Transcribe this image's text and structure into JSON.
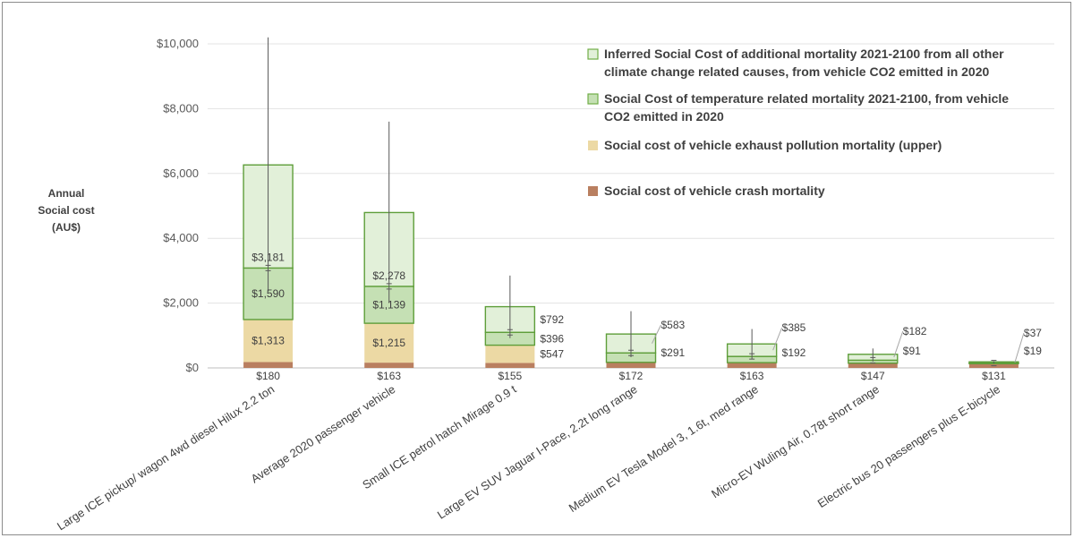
{
  "chart_data": {
    "type": "bar",
    "stacked": true,
    "ylabel_lines": [
      "Annual",
      "Social cost",
      "(AU$)"
    ],
    "ylim": [
      0,
      10000
    ],
    "yticks": [
      "$0",
      "$2,000",
      "$4,000",
      "$6,000",
      "$8,000",
      "$10,000"
    ],
    "ytick_values": [
      0,
      2000,
      4000,
      6000,
      8000,
      10000
    ],
    "categories": [
      "Large ICE pickup/ wagon 4wd diesel Hilux 2.2 ton",
      "Average 2020 passenger vehicle",
      "Small ICE petrol hatch Mirage 0.9 t",
      "Large EV  SUV  Jaguar I-Pace, 2.2t long range",
      "Medium EV Tesla Model 3, 1.6t, med range",
      "Micro-EV Wuling Air,  0.78t short range",
      "Electric bus 20 passengers plus E-bicycle"
    ],
    "series": [
      {
        "name": "Social cost of vehicle crash mortality",
        "color": "#b97f60",
        "values": [
          180,
          163,
          155,
          172,
          163,
          147,
          131
        ],
        "labels": [
          "$180",
          "$163",
          "$155",
          "$172",
          "$163",
          "$147",
          "$131"
        ]
      },
      {
        "name": "Social cost of vehicle exhaust pollution mortality (upper)",
        "color": "#ecd9a4",
        "values": [
          1313,
          1215,
          547,
          0,
          0,
          0,
          0
        ],
        "labels": [
          "$1,313",
          "$1,215",
          "$547",
          "",
          "",
          "",
          ""
        ]
      },
      {
        "name": "Social Cost of temperature related mortality 2021-2100, from vehicle CO2 emitted in 2020",
        "color": "#c5e0b4",
        "values": [
          1590,
          1139,
          396,
          291,
          192,
          91,
          19
        ],
        "labels": [
          "$1,590",
          "$1,139",
          "$396",
          "$291",
          "$192",
          "$91",
          "$19"
        ]
      },
      {
        "name": "Inferred Social Cost of additional mortality 2021-2100 from all other climate change related causes, from vehicle CO2 emitted in 2020",
        "color": "#e2f0d9",
        "values": [
          3181,
          2278,
          792,
          583,
          385,
          182,
          37
        ],
        "labels": [
          "$3,181",
          "$2,278",
          "$792",
          "$583",
          "$385",
          "$182",
          "$37"
        ]
      }
    ],
    "error_bar_tops": [
      10200,
      7600,
      2850,
      1750,
      1200,
      600,
      210
    ],
    "legend": {
      "placement": "top-right",
      "items": [
        {
          "lines": [
            "Inferred Social Cost of additional mortality 2021-2100 from all other",
            "climate change related causes, from vehicle CO2 emitted in 2020"
          ],
          "fill": "#e2f0d9",
          "stroke": "#70ad47"
        },
        {
          "lines": [
            "Social Cost of temperature related mortality 2021-2100, from vehicle",
            "CO2 emitted in 2020"
          ],
          "fill": "#c5e0b4",
          "stroke": "#70ad47"
        },
        {
          "lines": [
            "Social cost of vehicle exhaust pollution mortality (upper)"
          ],
          "fill": "#ecd9a4",
          "stroke": "none"
        },
        {
          "lines": [
            "Social cost of vehicle crash mortality"
          ],
          "fill": "#b97f60",
          "stroke": "none"
        }
      ]
    },
    "grid": true
  }
}
